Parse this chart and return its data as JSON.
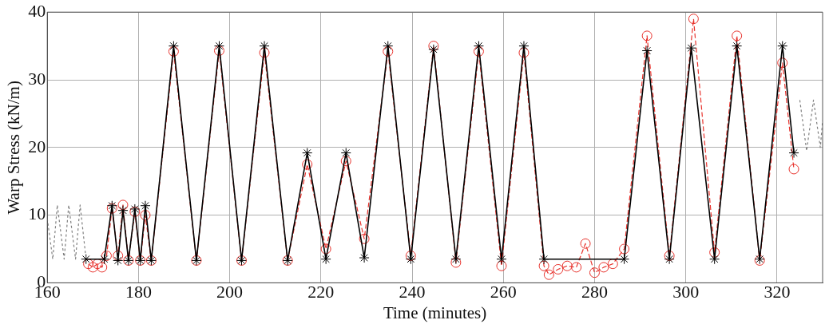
{
  "chart_data": {
    "type": "line",
    "xlabel": "Time (minutes)",
    "ylabel": "Warp Stress (kN/m)",
    "xlim": [
      160,
      330
    ],
    "xticks": [
      160,
      180,
      200,
      220,
      240,
      260,
      280,
      300,
      320
    ],
    "ylim": [
      0,
      40
    ],
    "yticks": [
      0,
      10,
      20,
      30,
      40
    ],
    "grid": true,
    "legend": false,
    "series": [
      {
        "color": "#808080",
        "marker": "none",
        "line_style": "dotted",
        "x": [
          160,
          161.2,
          162.2,
          163.7,
          164.7,
          166.2,
          167.2,
          168.5,
          323.7,
          325,
          326.5,
          328,
          329.5,
          330
        ],
        "values": [
          9.5,
          3.5,
          11.5,
          3.5,
          11.5,
          3.5,
          11.5,
          3.5,
          null,
          27,
          19.5,
          27,
          20,
          24
        ]
      },
      {
        "color": "#000000",
        "marker": "cross",
        "line_style": "solid",
        "x": [
          168.5,
          172.5,
          174.2,
          175.5,
          176.6,
          177.8,
          179.2,
          180.4,
          181.5,
          182.8,
          187.7,
          192.7,
          197.7,
          202.6,
          207.6,
          212.7,
          217,
          221.1,
          225.5,
          229.5,
          234.7,
          239.7,
          244.7,
          249.6,
          254.6,
          259.6,
          264.5,
          268.9,
          286.5,
          291.5,
          296.4,
          301.2,
          306.3,
          311.2,
          316.2,
          321.2,
          323.7
        ],
        "values": [
          3.5,
          3.5,
          11.4,
          3.3,
          10.7,
          3.3,
          10.9,
          3.3,
          11.4,
          3.3,
          35,
          3.3,
          35,
          3.3,
          35,
          3.3,
          19.2,
          3.5,
          19.2,
          3.7,
          35,
          3.5,
          34.5,
          3.5,
          35,
          3.5,
          35,
          3.5,
          3.5,
          34.3,
          3.5,
          34.7,
          3.5,
          35,
          3.5,
          35,
          19.2
        ]
      },
      {
        "color": "#e8322c",
        "marker": "circle",
        "line_style": "dashed",
        "x": [
          169,
          170,
          171,
          172,
          173,
          174.2,
          175.5,
          176.6,
          177.8,
          179.2,
          180.4,
          181.5,
          182.8,
          187.7,
          192.7,
          197.7,
          202.6,
          207.6,
          212.7,
          217,
          221.1,
          225.5,
          229.5,
          234.7,
          239.7,
          244.7,
          249.6,
          254.6,
          259.6,
          264.5,
          268.9,
          270,
          272,
          274,
          276,
          278,
          280,
          282,
          284,
          286.5,
          291.5,
          296.4,
          301.7,
          306.3,
          311.2,
          316.2,
          321.2,
          323.7
        ],
        "values": [
          2.8,
          2.3,
          2.8,
          2.3,
          4,
          11,
          4,
          11.5,
          3.3,
          10.5,
          3.3,
          10,
          3.3,
          34.2,
          3.3,
          34.3,
          3.3,
          34,
          3.3,
          17.5,
          5,
          18,
          6.5,
          34.2,
          4,
          35,
          3,
          34.2,
          2.5,
          34,
          2.5,
          1.2,
          2,
          2.5,
          2.3,
          5.8,
          1.5,
          2.3,
          2.8,
          5,
          36.5,
          4,
          39,
          4.5,
          36.5,
          3.3,
          32.5,
          16.8
        ]
      }
    ]
  }
}
